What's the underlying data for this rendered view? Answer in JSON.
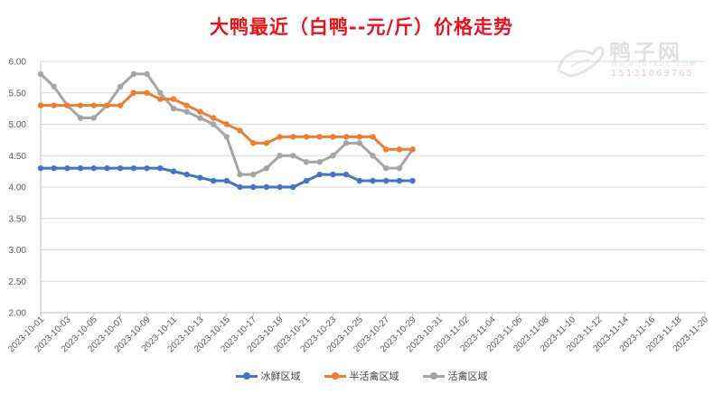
{
  "chart_data": {
    "type": "line",
    "title": "大鸭最近（白鸭--元/斤）价格走势",
    "ylim": [
      2.0,
      6.0
    ],
    "y_ticks": [
      "2.00",
      "2.50",
      "3.00",
      "3.50",
      "4.00",
      "4.50",
      "5.00",
      "5.50",
      "6.00"
    ],
    "x_tick_labels": [
      "2023-10-01",
      "2023-10-03",
      "2023-10-05",
      "2023-10-07",
      "2023-10-09",
      "2023-10-11",
      "2023-10-13",
      "2023-10-15",
      "2023-10-17",
      "2023-10-19",
      "2023-10-21",
      "2023-10-23",
      "2023-10-25",
      "2023-10-27",
      "2023-10-29",
      "2023-10-31",
      "2023-11-02",
      "2023-11-04",
      "2023-11-06",
      "2023-11-08",
      "2023-11-10",
      "2023-11-12",
      "2023-11-14",
      "2023-11-16",
      "2023-11-18",
      "2023-11-20"
    ],
    "x_range": [
      "2023-10-01",
      "2023-11-20"
    ],
    "x": [
      "2023-10-01",
      "2023-10-02",
      "2023-10-03",
      "2023-10-04",
      "2023-10-05",
      "2023-10-06",
      "2023-10-07",
      "2023-10-08",
      "2023-10-09",
      "2023-10-10",
      "2023-10-11",
      "2023-10-12",
      "2023-10-13",
      "2023-10-14",
      "2023-10-15",
      "2023-10-16",
      "2023-10-17",
      "2023-10-18",
      "2023-10-19",
      "2023-10-20",
      "2023-10-21",
      "2023-10-22",
      "2023-10-23",
      "2023-10-24",
      "2023-10-25",
      "2023-10-26",
      "2023-10-27",
      "2023-10-28",
      "2023-10-29"
    ],
    "series": [
      {
        "name": "冰鲜区域",
        "color": "#4472c4",
        "values": [
          4.3,
          4.3,
          4.3,
          4.3,
          4.3,
          4.3,
          4.3,
          4.3,
          4.3,
          4.3,
          4.25,
          4.2,
          4.15,
          4.1,
          4.1,
          4.0,
          4.0,
          4.0,
          4.0,
          4.0,
          4.1,
          4.2,
          4.2,
          4.2,
          4.1,
          4.1,
          4.1,
          4.1,
          4.1
        ]
      },
      {
        "name": "半活禽区域",
        "color": "#ed7d31",
        "values": [
          5.3,
          5.3,
          5.3,
          5.3,
          5.3,
          5.3,
          5.3,
          5.5,
          5.5,
          5.4,
          5.4,
          5.3,
          5.2,
          5.1,
          5.0,
          4.9,
          4.7,
          4.7,
          4.8,
          4.8,
          4.8,
          4.8,
          4.8,
          4.8,
          4.8,
          4.8,
          4.6,
          4.6,
          4.6
        ]
      },
      {
        "name": "活禽区域",
        "color": "#a5a5a5",
        "values": [
          5.8,
          5.6,
          5.3,
          5.1,
          5.1,
          5.3,
          5.6,
          5.8,
          5.8,
          5.5,
          5.25,
          5.2,
          5.1,
          5.0,
          4.8,
          4.2,
          4.2,
          4.3,
          4.5,
          4.5,
          4.4,
          4.4,
          4.5,
          4.7,
          4.7,
          4.5,
          4.3,
          4.3,
          4.6
        ]
      }
    ],
    "grid": "horizontal",
    "legend": "bottom"
  },
  "watermark": {
    "name": "鸭子网",
    "url": "WWW.INTEDC.COM",
    "phone": "15131069765"
  }
}
